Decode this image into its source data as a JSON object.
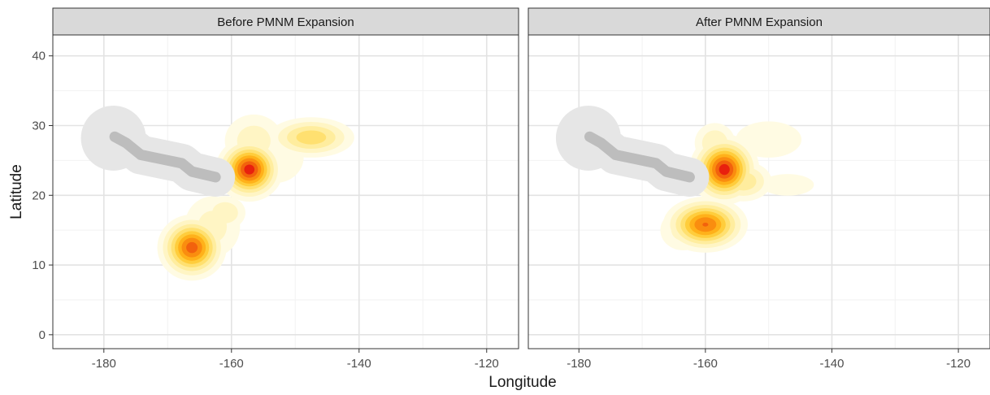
{
  "chart_data": {
    "type": "density-map",
    "xlabel": "Longitude",
    "ylabel": "Latitude",
    "xlim": [
      -188,
      -115
    ],
    "ylim": [
      -2,
      43
    ],
    "x_ticks": [
      -180,
      -160,
      -140,
      -120
    ],
    "y_ticks": [
      0,
      10,
      20,
      30,
      40
    ],
    "grid": true,
    "colors": {
      "strip": "#d9d9d9",
      "buffer": "#e6e6e6",
      "island_chain": "#bdbdbd",
      "density_low": "#fff9d6",
      "density_high": "#e8200e"
    },
    "island_chain": [
      [
        -178.3,
        28.4
      ],
      [
        -176.5,
        27.5
      ],
      [
        -174.2,
        25.8
      ],
      [
        -171,
        25.2
      ],
      [
        -167.8,
        24.6
      ],
      [
        -166.2,
        23.4
      ],
      [
        -162.5,
        22.6
      ]
    ],
    "panels": [
      {
        "title": "Before PMNM Expansion",
        "hotspots": [
          {
            "x": -157.2,
            "y": 23.7,
            "peak": 1.0,
            "sx": 2.3,
            "sy": 2.0
          },
          {
            "x": -166.2,
            "y": 12.5,
            "peak": 0.9,
            "sx": 2.4,
            "sy": 2.1
          },
          {
            "x": -147.5,
            "y": 28.3,
            "peak": 0.45,
            "sx": 3.5,
            "sy": 1.5
          },
          {
            "x": -156.5,
            "y": 27.8,
            "peak": 0.22,
            "sx": 3.0,
            "sy": 2.5
          },
          {
            "x": -161,
            "y": 17.5,
            "peak": 0.25,
            "sx": 2.0,
            "sy": 1.5
          },
          {
            "x": -153,
            "y": 25.5,
            "peak": 0.15,
            "sx": 3.5,
            "sy": 3.0
          },
          {
            "x": -163,
            "y": 15.5,
            "peak": 0.2,
            "sx": 3.0,
            "sy": 3.0
          }
        ]
      },
      {
        "title": "After PMNM Expansion",
        "hotspots": [
          {
            "x": -157,
            "y": 23.7,
            "peak": 1.0,
            "sx": 2.4,
            "sy": 2.2
          },
          {
            "x": -160,
            "y": 15.8,
            "peak": 0.85,
            "sx": 3.0,
            "sy": 1.8
          },
          {
            "x": -154,
            "y": 22.0,
            "peak": 0.35,
            "sx": 2.5,
            "sy": 1.6
          },
          {
            "x": -150,
            "y": 28.0,
            "peak": 0.12,
            "sx": 5.0,
            "sy": 2.5
          },
          {
            "x": -147,
            "y": 21.5,
            "peak": 0.12,
            "sx": 4.0,
            "sy": 1.5
          },
          {
            "x": -158.5,
            "y": 27.5,
            "peak": 0.25,
            "sx": 2.0,
            "sy": 1.8
          },
          {
            "x": -163.5,
            "y": 15.0,
            "peak": 0.2,
            "sx": 2.5,
            "sy": 2.0
          }
        ]
      }
    ]
  }
}
